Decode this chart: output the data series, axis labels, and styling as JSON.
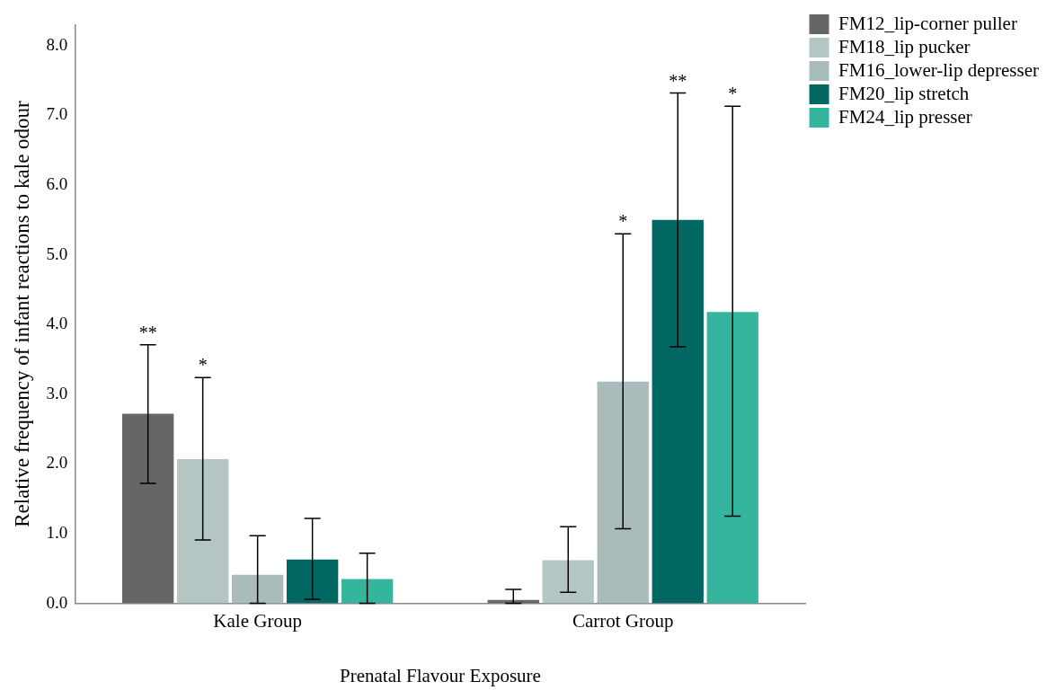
{
  "chart_data": {
    "type": "bar",
    "xlabel": "Prenatal Flavour Exposure",
    "ylabel": "Relative frequency of infant reactions to kale odour",
    "categories": [
      "Kale Group",
      "Carrot Group"
    ],
    "series": [
      {
        "name": "FM12_lip-corner puller",
        "color": "#666666",
        "values": [
          2.72,
          0.05
        ],
        "errors": [
          [
            1.72,
            3.71
          ],
          [
            0,
            0.2
          ]
        ]
      },
      {
        "name": "FM18_lip pucker",
        "color": "#b3c6c3",
        "values": [
          2.07,
          0.62
        ],
        "errors": [
          [
            0.91,
            3.24
          ],
          [
            0.16,
            1.1
          ]
        ]
      },
      {
        "name": "FM16_lower-lip depresser",
        "color": "#a9bcbb",
        "values": [
          0.41,
          3.18
        ],
        "errors": [
          [
            0,
            0.97
          ],
          [
            1.07,
            5.3
          ]
        ]
      },
      {
        "name": "FM20_lip stretch",
        "color": "#006763",
        "values": [
          0.63,
          5.5
        ],
        "errors": [
          [
            0.06,
            1.22
          ],
          [
            3.68,
            7.32
          ]
        ]
      },
      {
        "name": "FM24_lip presser",
        "color": "#35b59e",
        "values": [
          0.35,
          4.18
        ],
        "errors": [
          [
            0,
            0.72
          ],
          [
            1.25,
            7.13
          ]
        ]
      }
    ],
    "ylim": [
      0,
      8.3
    ],
    "yticks": [
      {
        "value": 0,
        "label": "0.0"
      },
      {
        "value": 1,
        "label": "1.0"
      },
      {
        "value": 2,
        "label": "2.0"
      },
      {
        "value": 3,
        "label": "3.0"
      },
      {
        "value": 4,
        "label": "4.0"
      },
      {
        "value": 5,
        "label": "5.0"
      },
      {
        "value": 6,
        "label": "6.0"
      },
      {
        "value": 7,
        "label": "7.0"
      },
      {
        "value": 8,
        "label": "8.0"
      }
    ],
    "grid": false,
    "legend": "top right",
    "annotations": [
      "**",
      "*",
      "*",
      "**",
      "*"
    ]
  }
}
